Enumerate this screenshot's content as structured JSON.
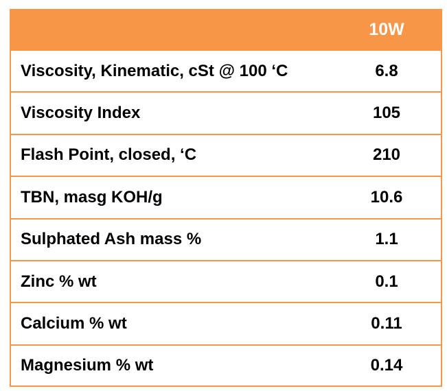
{
  "table": {
    "header": {
      "property_label": "",
      "grade": "10W"
    },
    "rows": [
      {
        "property": "Viscosity, Kinematic, cSt @ 100 ‘C",
        "value": "6.8"
      },
      {
        "property": "Viscosity Index",
        "value": "105"
      },
      {
        "property": "Flash Point, closed, ‘C",
        "value": "210"
      },
      {
        "property": "TBN, masg KOH/g",
        "value": "10.6"
      },
      {
        "property": "Sulphated Ash mass %",
        "value": "1.1"
      },
      {
        "property": "Zinc % wt",
        "value": "0.1"
      },
      {
        "property": "Calcium % wt",
        "value": "0.11"
      },
      {
        "property": "Magnesium % wt",
        "value": "0.14"
      }
    ],
    "accent_color": "#f79646"
  }
}
